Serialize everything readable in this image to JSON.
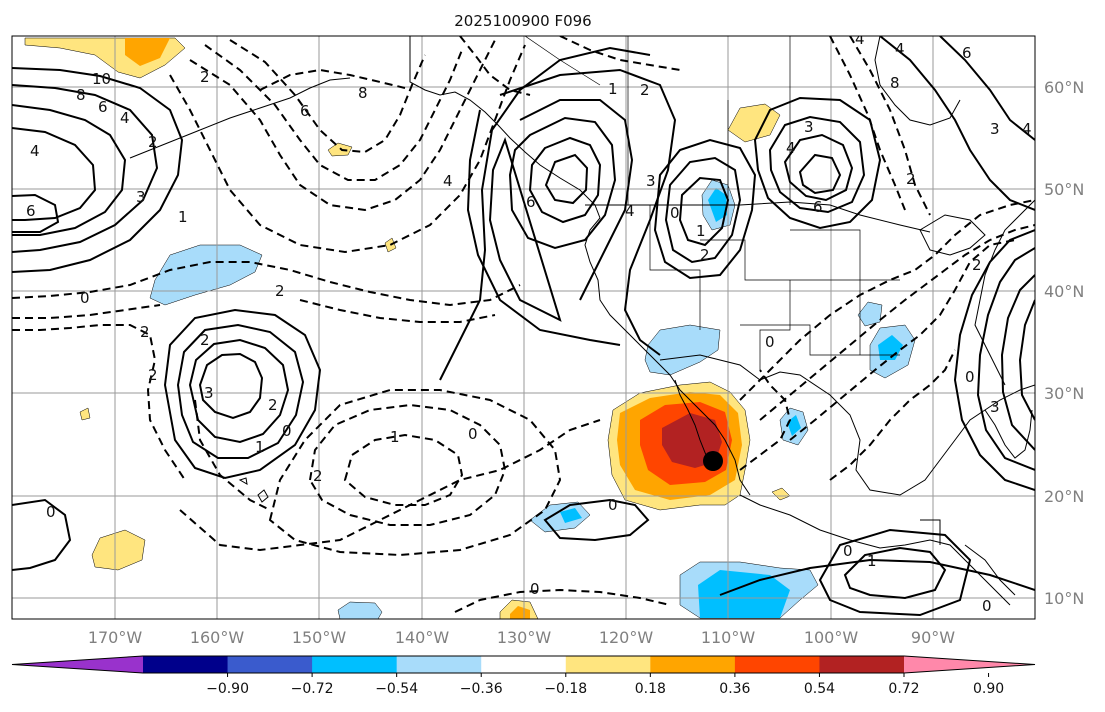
{
  "title": "2025100900 F096",
  "lon_labels": [
    "170°W",
    "160°W",
    "150°W",
    "140°W",
    "130°W",
    "120°W",
    "110°W",
    "100°W",
    "90°W"
  ],
  "lat_labels": [
    "60°N",
    "50°N",
    "40°N",
    "30°N",
    "20°N",
    "10°N"
  ],
  "colorbar": {
    "ticks": [
      "−0.90",
      "−0.72",
      "−0.54",
      "−0.36",
      "−0.18",
      "0.18",
      "0.36",
      "0.54",
      "0.72",
      "0.90"
    ],
    "colors": [
      "#9932cc",
      "#00008b",
      "#3a5bcd",
      "#00bfff",
      "#a8dcfa",
      "#ffffff",
      "#ffe57f",
      "#ffa500",
      "#ff4500",
      "#b22222",
      "#ff88aa"
    ]
  },
  "shading_colors": {
    "yellow": "#ffe57f",
    "orange": "#ffa500",
    "red_orange": "#ff4500",
    "dark_red": "#b22222",
    "light_blue": "#a8dcfa",
    "deep_sky_blue": "#00bfff"
  },
  "contour_labels": [
    "10",
    "8",
    "6",
    "4",
    "2",
    "4",
    "6",
    "3",
    "2",
    "1",
    "0",
    "2",
    "2",
    "3",
    "2",
    "1",
    "0",
    "6",
    "4",
    "2",
    "8",
    "4",
    "6",
    "2",
    "3",
    "4",
    "6",
    "3",
    "4",
    "2",
    "1",
    "0",
    "2",
    "2",
    "0",
    "1",
    "0",
    "2",
    "1",
    "0",
    "0",
    "0",
    "0",
    "1",
    "3",
    "2",
    "4",
    "3",
    "4",
    "8",
    "6",
    "0",
    "0"
  ],
  "marker": "storm-location"
}
